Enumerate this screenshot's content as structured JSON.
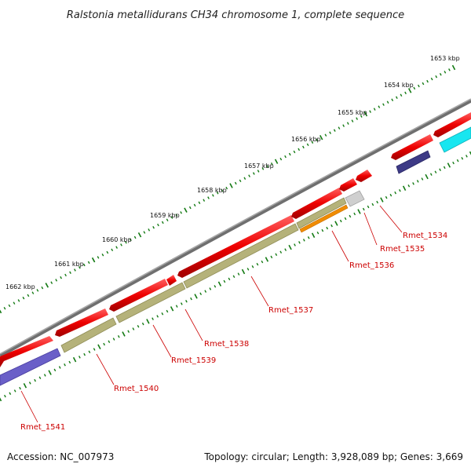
{
  "title": "Ralstonia metallidurans CH34 chromosome 1, complete sequence",
  "footer": {
    "accession": "Accession: NC_007973",
    "summary": "Topology: circular; Length: 3,928,089 bp; Genes: 3,669"
  },
  "scale": {
    "ticks": [
      "1653 kbp",
      "1654 kbp",
      "1655 kbp",
      "1656 kbp",
      "1657 kbp",
      "1658 kbp",
      "1659 kbp",
      "1660 kbp",
      "1661 kbp",
      "1662 kbp"
    ]
  },
  "gene_labels": [
    "Rmet_1534",
    "Rmet_1535",
    "Rmet_1536",
    "Rmet_1537",
    "Rmet_1538",
    "Rmet_1539",
    "Rmet_1540",
    "Rmet_1541"
  ],
  "colors": {
    "backbone": "#7a7a7a",
    "cds_forward": "#ee0000",
    "olive_track": "#b5b27a",
    "orange_track": "#f08c00",
    "grey_track": "#c8c8c8",
    "blue_track": "#6a5fc8",
    "navy_track": "#3d3a86",
    "cyan_track": "#18e6f0",
    "tick": "#137a13",
    "label": "#cc0000"
  }
}
